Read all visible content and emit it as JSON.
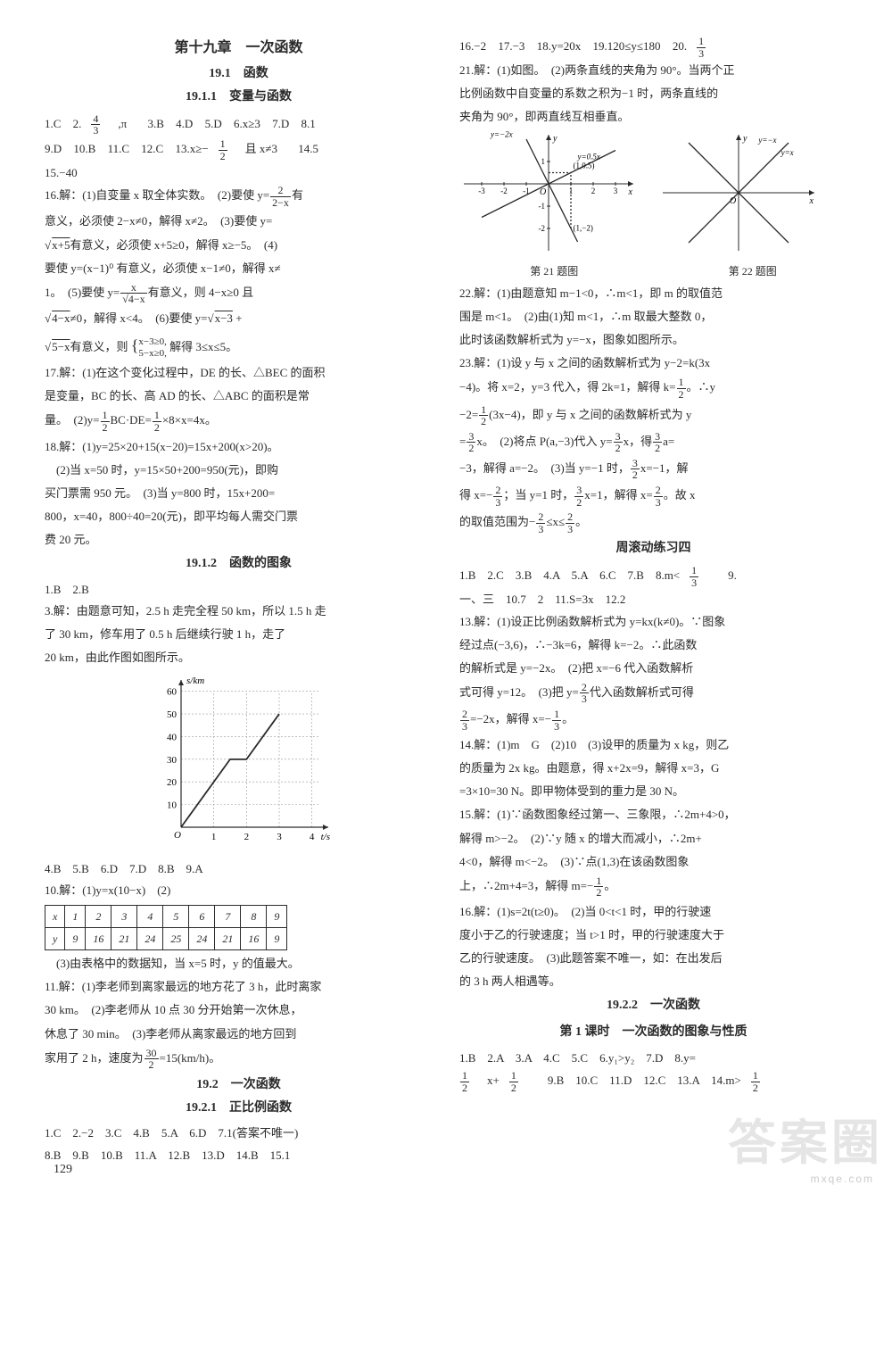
{
  "pageNumber": "129",
  "watermark": "答案圈",
  "watermarkSub": "mxqe.com",
  "left": {
    "chapterTitle": "第十九章　一次函数",
    "sectionTitle": "19.1　函数",
    "subsectionTitle": "19.1.1　变量与函数",
    "ans1": {
      "a1": "1.C",
      "a2": "2.",
      "a2f_n": "4",
      "a2f_d": "3",
      "a2tail": ",π",
      "a3": "3.B",
      "a4": "4.D",
      "a5": "5.D",
      "a6": "6.x≥3",
      "a7": "7.D",
      "a8": "8.1"
    },
    "ans2": {
      "a9": "9.D",
      "a10": "10.B",
      "a11": "11.C",
      "a12": "12.C",
      "a13a": "13.x≥−",
      "a13f_n": "1",
      "a13f_d": "2",
      "a13b": "且 x≠3",
      "a14": "14.5"
    },
    "ans3": "15.−40",
    "sol16a": "16.解：(1)自变量 x 取全体实数。　(2)要使 y=",
    "sol16a_f_n": "2",
    "sol16a_f_d": "2−x",
    "sol16a_tail": "有",
    "sol16b": "意义，必须使 2−x≠0，解得 x≠2。　(3)要使 y=",
    "sol16c_pre": "√",
    "sol16c_arg": "x+5",
    "sol16c": "有意义，必须使 x+5≥0，解得 x≥−5。　(4)",
    "sol16d": "要使 y=(x−1)⁰ 有意义，必须使 x−1≠0，解得 x≠",
    "sol16e": "1。　(5)要使 y=",
    "sol16e_f_n": "x",
    "sol16e_f_d": "√4−x",
    "sol16e_tail": "有意义，则 4−x≥0 且",
    "sol16f_a": "√",
    "sol16f_arg": "4−x",
    "sol16f": "≠0，解得 x<4。　(6)要使 y=",
    "sol16f_b": "√",
    "sol16f_barg": "x−3",
    "sol16f_tail": " +",
    "sol16g_a": "√",
    "sol16g_arg": "5−x",
    "sol16g": "有意义，则",
    "sol16g_sys1": "x−3≥0,",
    "sol16g_sys2": "5−x≥0,",
    "sol16g_tail": "解得 3≤x≤5。",
    "sol17a": "17.解：(1)在这个变化过程中，DE 的长、△BEC 的面积",
    "sol17b": "是变量，BC 的长、高 AD 的长、△ABC 的面积是常",
    "sol17c": "量。　(2)y=",
    "sol17c_f1n": "1",
    "sol17c_f1d": "2",
    "sol17c_mid": "BC·DE=",
    "sol17c_f2n": "1",
    "sol17c_f2d": "2",
    "sol17c_tail": "×8×x=4x。",
    "sol18a": "18.解：(1)y=25×20+15(x−20)=15x+200(x>20)。",
    "sol18b": "　(2)当 x=50 时，y=15×50+200=950(元)，即购",
    "sol18c": "买门票需 950 元。　(3)当 y=800 时，15x+200=",
    "sol18d": "800，x=40，800÷40=20(元)，即平均每人需交门票",
    "sol18e": "费 20 元。",
    "subsectionTitle2": "19.1.2　函数的图象",
    "ansB": "1.B　2.B",
    "sol3a": "3.解：由题意可知，2.5 h 走完全程 50 km，所以 1.5 h 走",
    "sol3b": "了 30 km，修车用了 0.5 h 后继续行驶 1 h，走了",
    "sol3c": "20 km，由此作图如图所示。",
    "chart1": {
      "type": "line",
      "xLabel": "t/s",
      "yLabel": "s/km",
      "xTicks": [
        1,
        2,
        3,
        4
      ],
      "yTicks": [
        10,
        20,
        30,
        40,
        50,
        60
      ],
      "xlim": [
        0,
        4.5
      ],
      "ylim": [
        0,
        65
      ],
      "points": [
        [
          0,
          0
        ],
        [
          1.5,
          30
        ],
        [
          2,
          30
        ],
        [
          3,
          50
        ]
      ],
      "lineColor": "#2a2a2a",
      "gridColor": "#999999",
      "bg": "#ffffff"
    },
    "ansC": "4.B　5.B　6.D　7.D　8.B　9.A",
    "sol10": "10.解：(1)y=x(10−x)　(2)",
    "table": {
      "header": [
        "x",
        "1",
        "2",
        "3",
        "4",
        "5",
        "6",
        "7",
        "8",
        "9"
      ],
      "row": [
        "y",
        "9",
        "16",
        "21",
        "24",
        "25",
        "24",
        "21",
        "16",
        "9"
      ]
    },
    "sol10b": "　(3)由表格中的数据知，当 x=5 时，y 的值最大。",
    "sol11a": "11.解：(1)李老师到离家最远的地方花了 3 h，此时离家",
    "sol11b": "30 km。　(2)李老师从 10 点 30 分开始第一次休息，",
    "sol11c": "休息了 30 min。　(3)李老师从离家最远的地方回到",
    "sol11d": "家用了 2 h，速度为",
    "sol11d_fn": "30",
    "sol11d_fd": "2",
    "sol11d_tail": "=15(km/h)。",
    "sectionTitle2": "19.2　一次函数",
    "subsectionTitle3": "19.2.1　正比例函数",
    "ansD1": "1.C　2.−2　3.C　4.B　5.A　6.D　7.1(答案不唯一)",
    "ansD2": "8.B　9.B　10.B　11.A　12.B　13.D　14.B　15.1"
  },
  "right": {
    "ansE": {
      "a16": "16.−2",
      "a17": "17.−3",
      "a18": "18.y=20x",
      "a19": "19.120≤y≤180",
      "a20": "20.",
      "a20fn": "1",
      "a20fd": "3"
    },
    "sol21a": "21.解：(1)如图。　(2)两条直线的夹角为 90°。当两个正",
    "sol21b": "比例函数中自变量的系数之积为−1 时，两条直线的",
    "sol21c": "夹角为 90°，即两直线互相垂直。",
    "chart21": {
      "type": "line-pair",
      "labelsA": [
        "y=−2x",
        "(1,0.5)",
        "y=0.5x",
        "(1,−2)"
      ],
      "labelsB": [
        "y=−x",
        "y=x"
      ],
      "xTicks": [
        -3,
        -2,
        -1,
        1,
        2,
        3
      ],
      "yTicks": [
        -2,
        -1,
        1
      ],
      "lineColor": "#2a2a2a"
    },
    "fig21": "第 21 题图",
    "fig22": "第 22 题图",
    "sol22a": "22.解：(1)由题意知 m−1<0，∴m<1，即 m 的取值范",
    "sol22b": "围是 m<1。　(2)由(1)知 m<1，∴m 取最大整数 0，",
    "sol22c": "此时该函数解析式为 y=−x，图象如图所示。",
    "sol23a": "23.解：(1)设 y 与 x 之间的函数解析式为 y−2=k(3x",
    "sol23b": "−4)。将 x=2，y=3 代入，得 2k=1，解得 k=",
    "sol23b_fn": "1",
    "sol23b_fd": "2",
    "sol23b_tail": "。∴y",
    "sol23c": "−2=",
    "sol23c_fn": "1",
    "sol23c_fd": "2",
    "sol23c_tail": "(3x−4)，即 y 与 x 之间的函数解析式为 y",
    "sol23d": "=",
    "sol23d_fn": "3",
    "sol23d_fd": "2",
    "sol23d_tail": "x。　(2)将点 P(a,−3)代入 y=",
    "sol23d_fn2": "3",
    "sol23d_fd2": "2",
    "sol23d_tail2": "x，得",
    "sol23d_fn3": "3",
    "sol23d_fd3": "2",
    "sol23d_tail3": "a=",
    "sol23e": "−3，解得 a=−2。　(3)当 y=−1 时，",
    "sol23e_fn": "3",
    "sol23e_fd": "2",
    "sol23e_tail": "x=−1，解",
    "sol23f": "得 x=−",
    "sol23f_fn": "2",
    "sol23f_fd": "3",
    "sol23f_tail": "；当 y=1 时，",
    "sol23f_fn2": "3",
    "sol23f_fd2": "2",
    "sol23f_tail2": "x=1，解得 x=",
    "sol23f_fn3": "2",
    "sol23f_fd3": "3",
    "sol23f_tail3": "。故 x",
    "sol23g": "的取值范围为−",
    "sol23g_fn": "2",
    "sol23g_fd": "3",
    "sol23g_tail": "≤x≤",
    "sol23g_fn2": "2",
    "sol23g_fd2": "3",
    "sol23g_tail2": "。",
    "sectionTitleR": "周滚动练习四",
    "ansF": {
      "l1a": "1.B　2.C　3.B　4.A　5.A　6.C　7.B　8.m<",
      "l1fn": "1",
      "l1fd": "3",
      "l1tail": "　9."
    },
    "ansF2": "一、三　10.7　2　11.S=3x　12.2",
    "sol13a": "13.解：(1)设正比例函数解析式为 y=kx(k≠0)。∵图象",
    "sol13b": "经过点(−3,6)，∴−3k=6，解得 k=−2。∴此函数",
    "sol13c": "的解析式是 y=−2x。　(2)把 x=−6 代入函数解析",
    "sol13d": "式可得 y=12。　(3)把 y=",
    "sol13d_fn": "2",
    "sol13d_fd": "3",
    "sol13d_tail": "代入函数解析式可得",
    "sol13e_fn": "2",
    "sol13e_fd": "3",
    "sol13e_mid": "=−2x，解得 x=−",
    "sol13e_fn2": "1",
    "sol13e_fd2": "3",
    "sol13e_tail": "。",
    "sol14a": "14.解：(1)m　G　(2)10　(3)设甲的质量为 x kg，则乙",
    "sol14b": "的质量为 2x kg。由题意，得 x+2x=9，解得 x=3，G",
    "sol14c": "=3×10=30 N。即甲物体受到的重力是 30 N。",
    "sol15a": "15.解：(1)∵函数图象经过第一、三象限，∴2m+4>0，",
    "sol15b": "解得 m>−2。　(2)∵y 随 x 的增大而减小，∴2m+",
    "sol15c": "4<0，解得 m<−2。　(3)∵点(1,3)在该函数图象",
    "sol15d": "上，∴2m+4=3，解得 m=−",
    "sol15d_fn": "1",
    "sol15d_fd": "2",
    "sol15d_tail": "。",
    "sol16a": "16.解：(1)s=2t(t≥0)。　(2)当 0<t<1 时，甲的行驶速",
    "sol16b": "度小于乙的行驶速度；当 t>1 时，甲的行驶速度大于",
    "sol16c": "乙的行驶速度。　(3)此题答案不唯一，如：在出发后",
    "sol16d": "的 3 h 两人相遇等。",
    "subsectionTitleR": "19.2.2　一次函数",
    "lessonTitle": "第 1 课时　一次函数的图象与性质",
    "ansG1": {
      "l": "1.B　2.A　3.A　4.C　5.C　6.y₁>y₂　7.D　8.y="
    },
    "ansG2": {
      "fn": "1",
      "fd": "2",
      "mid": "x+",
      "fn2": "1",
      "fd2": "2",
      "tail": "　9.B　10.C　11.D　12.C　13.A　14.m>",
      "fn3": "1",
      "fd3": "2"
    }
  }
}
